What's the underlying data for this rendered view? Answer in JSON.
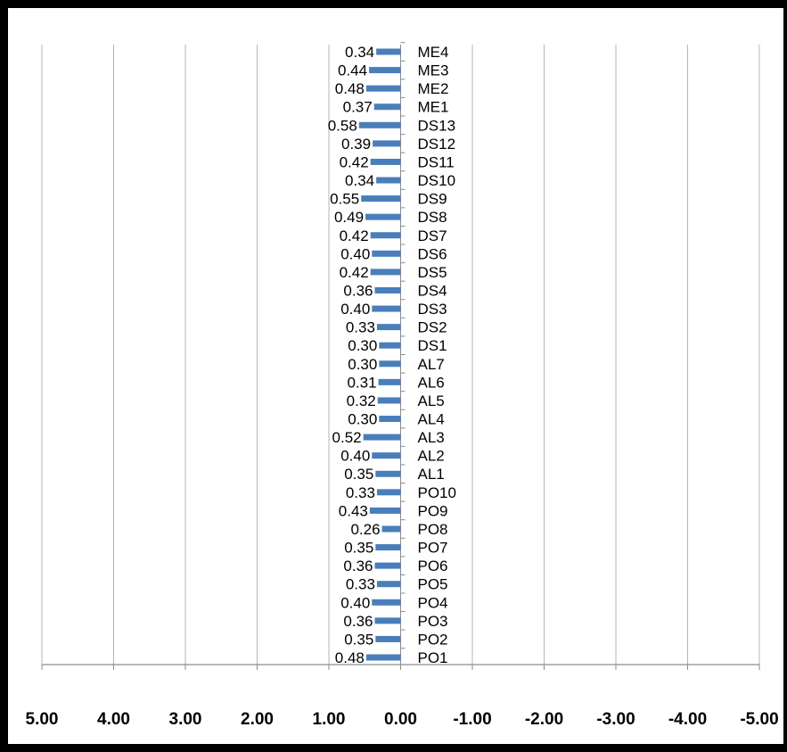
{
  "chart_data": {
    "type": "bar",
    "orientation": "horizontal",
    "x_reversed": true,
    "xlim": [
      -5,
      5
    ],
    "x_ticks": [
      5,
      4,
      3,
      2,
      1,
      0,
      -1,
      -2,
      -3,
      -4,
      -5
    ],
    "x_tick_labels": [
      "5.00",
      "4.00",
      "3.00",
      "2.00",
      "1.00",
      "0.00",
      "-1.00",
      "-2.00",
      "-3.00",
      "-4.00",
      "-5.00"
    ],
    "grid": "vertical",
    "bar_color": "#4a7ebb",
    "categories": [
      "ME4",
      "ME3",
      "ME2",
      "ME1",
      "DS13",
      "DS12",
      "DS11",
      "DS10",
      "DS9",
      "DS8",
      "DS7",
      "DS6",
      "DS5",
      "DS4",
      "DS3",
      "DS2",
      "DS1",
      "AL7",
      "AL6",
      "AL5",
      "AL4",
      "AL3",
      "AL2",
      "AL1",
      "PO10",
      "PO9",
      "PO8",
      "PO7",
      "PO6",
      "PO5",
      "PO4",
      "PO3",
      "PO2",
      "PO1"
    ],
    "values": [
      0.34,
      0.44,
      0.48,
      0.37,
      0.58,
      0.39,
      0.42,
      0.34,
      0.55,
      0.49,
      0.42,
      0.4,
      0.42,
      0.36,
      0.4,
      0.33,
      0.3,
      0.3,
      0.31,
      0.32,
      0.3,
      0.52,
      0.4,
      0.35,
      0.33,
      0.43,
      0.26,
      0.35,
      0.36,
      0.33,
      0.4,
      0.36,
      0.35,
      0.48
    ],
    "data_labels": [
      "0.34",
      "0.44",
      "0.48",
      "0.37",
      "0.58",
      "0.39",
      "0.42",
      "0.34",
      "0.55",
      "0.49",
      "0.42",
      "0.40",
      "0.42",
      "0.36",
      "0.40",
      "0.33",
      "0.30",
      "0.30",
      "0.31",
      "0.32",
      "0.30",
      "0.52",
      "0.40",
      "0.35",
      "0.33",
      "0.43",
      "0.26",
      "0.35",
      "0.36",
      "0.33",
      "0.40",
      "0.36",
      "0.35",
      "0.48"
    ]
  }
}
